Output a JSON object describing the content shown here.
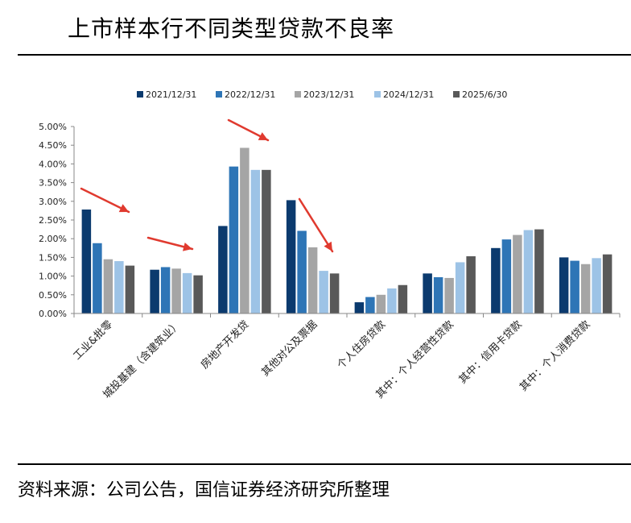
{
  "title": "上市样本行不同类型贷款不良率",
  "source": "资料来源：公司公告，国信证券经济研究所整理",
  "chart_data": {
    "type": "bar",
    "categories": [
      "工业&批零",
      "城投基建（含建筑业）",
      "房地产开发贷",
      "其他对公及票据",
      "个人住房贷款",
      "其中：个人经营性贷款",
      "其中：信用卡贷款",
      "其中：个人消费贷款"
    ],
    "series": [
      {
        "name": "2021/12/31",
        "color": "#0b3a6e",
        "values": [
          2.78,
          1.17,
          2.34,
          3.03,
          0.3,
          1.07,
          1.75,
          1.5
        ]
      },
      {
        "name": "2022/12/31",
        "color": "#2e75b6",
        "values": [
          1.88,
          1.24,
          3.93,
          2.21,
          0.44,
          0.97,
          1.98,
          1.41
        ]
      },
      {
        "name": "2023/12/31",
        "color": "#a5a5a5",
        "values": [
          1.45,
          1.2,
          4.43,
          1.77,
          0.5,
          0.95,
          2.1,
          1.32
        ]
      },
      {
        "name": "2024/12/31",
        "color": "#9dc3e6",
        "values": [
          1.4,
          1.08,
          3.84,
          1.14,
          0.67,
          1.37,
          2.23,
          1.48
        ]
      },
      {
        "name": "2025/6/30",
        "color": "#595959",
        "values": [
          1.28,
          1.02,
          3.84,
          1.07,
          0.76,
          1.53,
          2.25,
          1.58
        ]
      }
    ],
    "yticks": [
      "0.00%",
      "0.50%",
      "1.00%",
      "1.50%",
      "2.00%",
      "2.50%",
      "3.00%",
      "3.50%",
      "4.00%",
      "4.50%",
      "5.00%"
    ],
    "ylim": [
      0,
      5
    ],
    "legend_position": "top",
    "annotations": "red arrows pointing down-right above 工业&批零, 城投基建, 房地产开发贷, 其他对公及票据",
    "arrow_color": "#e03a2f"
  }
}
